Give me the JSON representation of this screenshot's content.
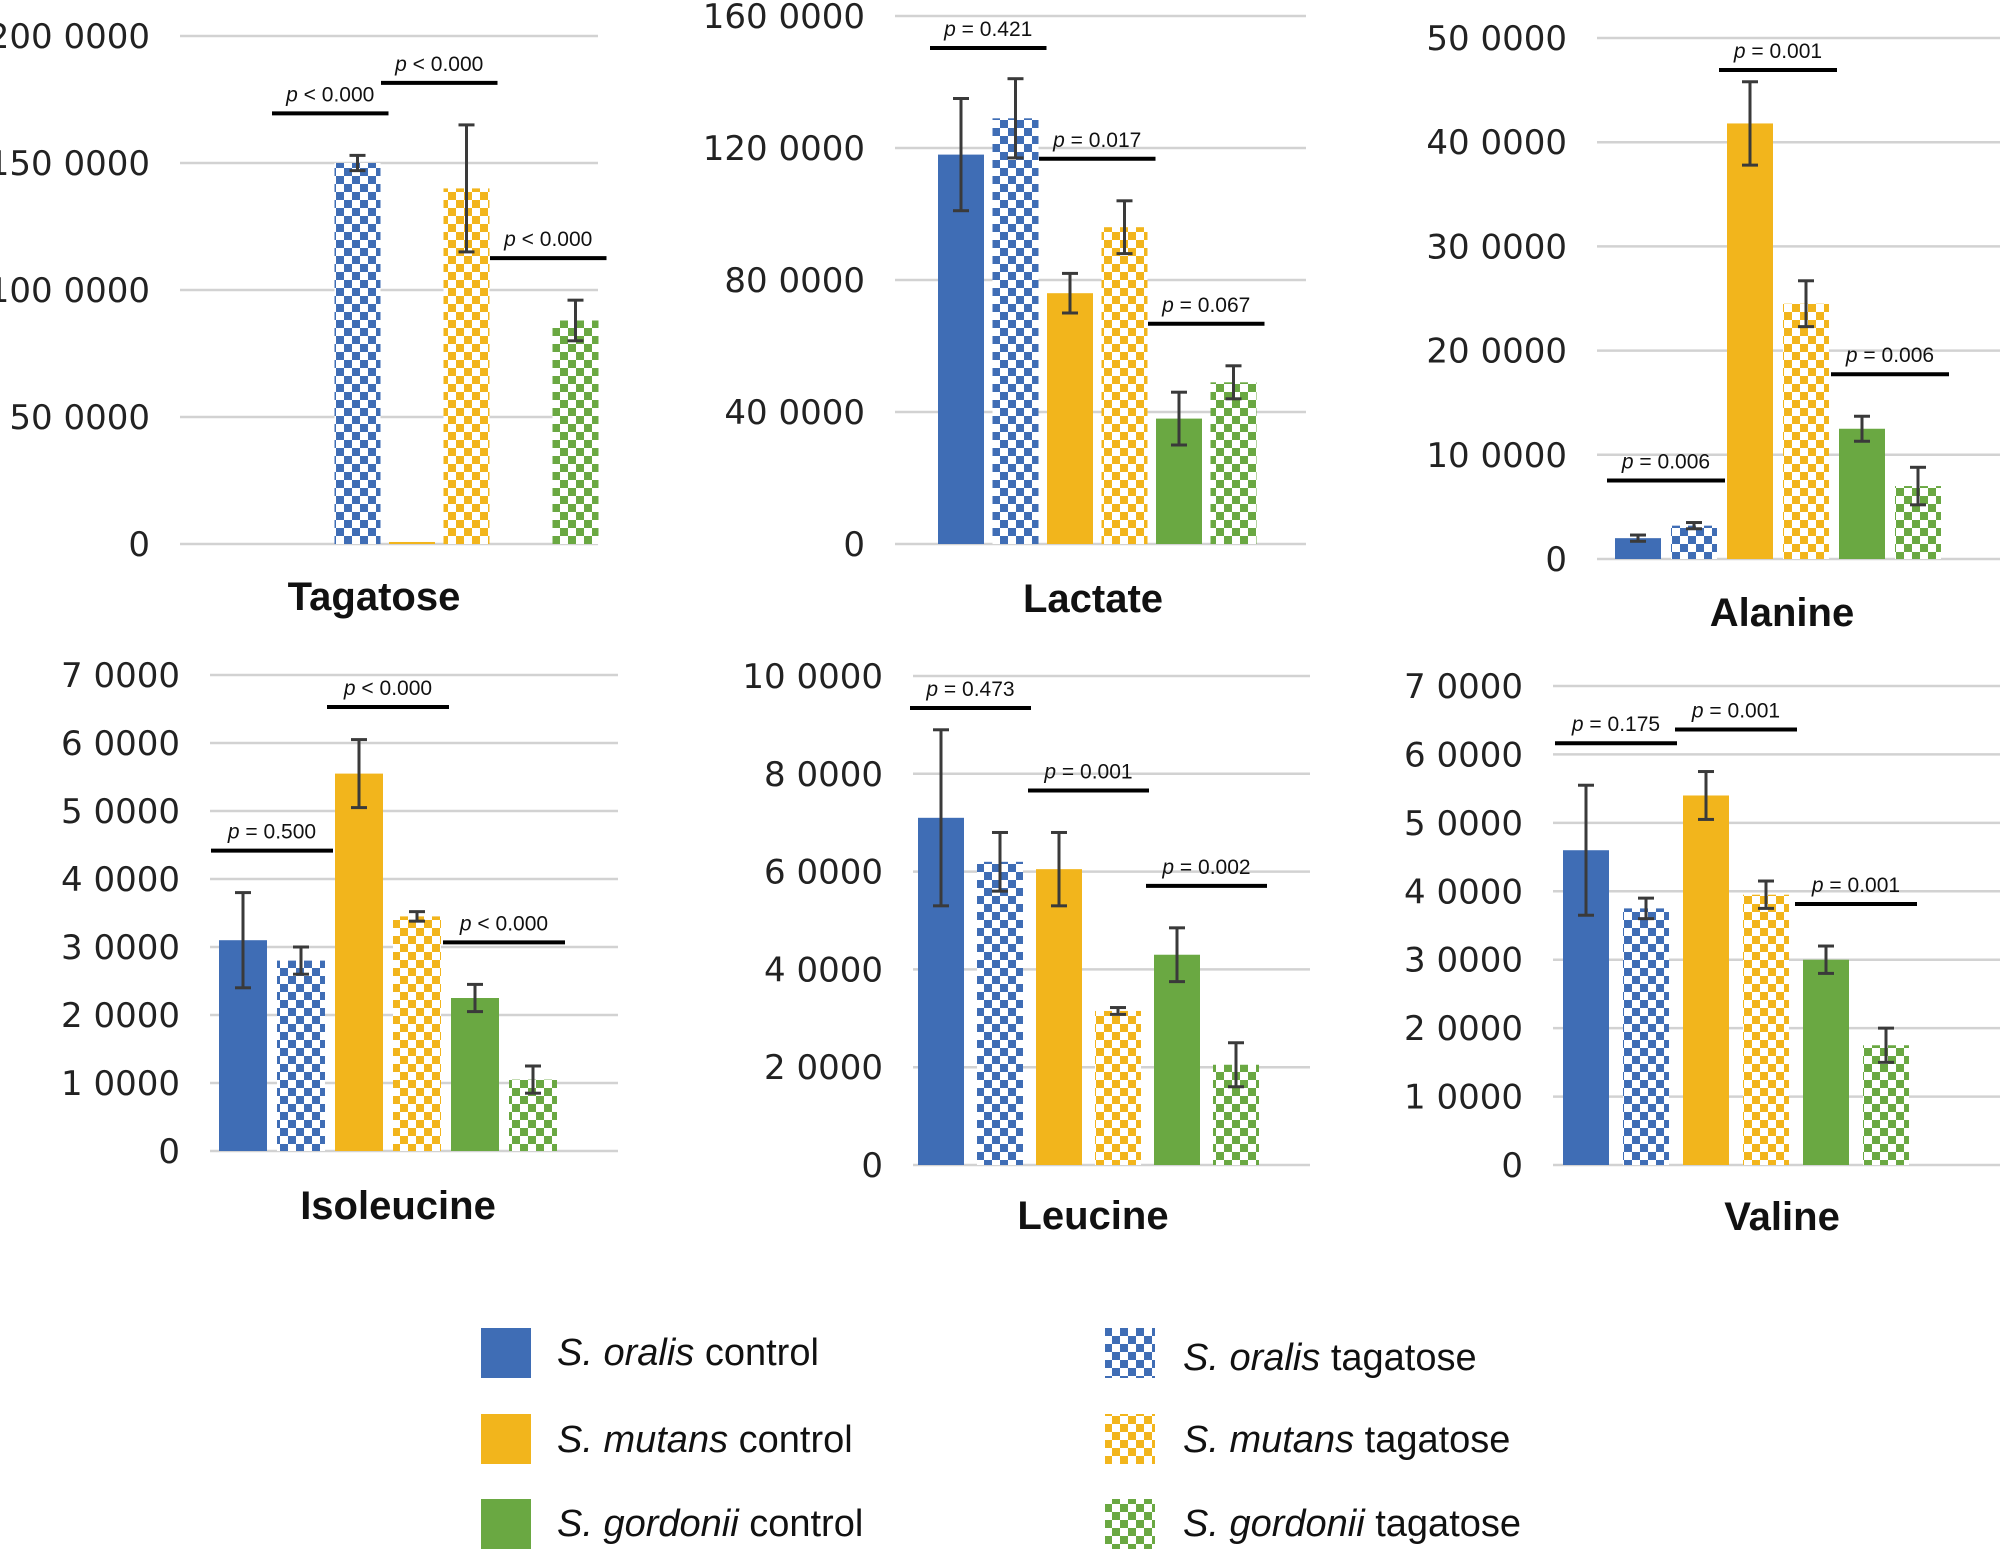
{
  "colors": {
    "oralis": "#3f6db5",
    "mutans": "#f2b51c",
    "gordonii": "#6aa842",
    "grid": "#d2d2d2",
    "error": "#3a3a3a"
  },
  "legend": [
    {
      "species": "S. oralis",
      "condition": "control",
      "color": "#3f6db5",
      "pattern": "solid"
    },
    {
      "species": "S. oralis",
      "condition": "tagatose",
      "color": "#3f6db5",
      "pattern": "checker"
    },
    {
      "species": "S. mutans",
      "condition": "control",
      "color": "#f2b51c",
      "pattern": "solid"
    },
    {
      "species": "S. mutans",
      "condition": "tagatose",
      "color": "#f2b51c",
      "pattern": "checker"
    },
    {
      "species": "S. gordonii",
      "condition": "control",
      "color": "#6aa842",
      "pattern": "solid"
    },
    {
      "species": "S. gordonii",
      "condition": "tagatose",
      "color": "#6aa842",
      "pattern": "checker"
    }
  ],
  "chart_data": [
    {
      "type": "bar",
      "title": "Tagatose",
      "ylim": [
        0,
        2000000
      ],
      "ytick_values": [
        0,
        500000,
        1000000,
        1500000,
        2000000
      ],
      "ytick_labels": [
        "0",
        "50 0000",
        "100 0000",
        "150 0000",
        "200 0000"
      ],
      "series": [
        {
          "name": "S. oralis control",
          "value": 0,
          "error": 0
        },
        {
          "name": "S. oralis tagatose",
          "value": 1500000,
          "error": 30000
        },
        {
          "name": "S. mutans control",
          "value": 8000,
          "error": 0
        },
        {
          "name": "S. mutans tagatose",
          "value": 1400000,
          "error": 250000
        },
        {
          "name": "S. gordonii control",
          "value": 0,
          "error": 0
        },
        {
          "name": "S. gordonii tagatose",
          "value": 880000,
          "error": 80000
        }
      ],
      "pvalues": [
        {
          "sign": "<",
          "value": "0.000",
          "pair": 0
        },
        {
          "sign": "<",
          "value": "0.000",
          "pair": 1
        },
        {
          "sign": "<",
          "value": "0.000",
          "pair": 2
        }
      ]
    },
    {
      "type": "bar",
      "title": "Lactate",
      "ylim": [
        0,
        1600000
      ],
      "ytick_values": [
        0,
        400000,
        800000,
        1200000,
        1600000
      ],
      "ytick_labels": [
        "0",
        "40 0000",
        "80 0000",
        "120 0000",
        "160 0000"
      ],
      "series": [
        {
          "name": "S. oralis control",
          "value": 1180000,
          "error": 170000
        },
        {
          "name": "S. oralis tagatose",
          "value": 1290000,
          "error": 120000
        },
        {
          "name": "S. mutans control",
          "value": 760000,
          "error": 60000
        },
        {
          "name": "S. mutans tagatose",
          "value": 960000,
          "error": 80000
        },
        {
          "name": "S. gordonii control",
          "value": 380000,
          "error": 80000
        },
        {
          "name": "S. gordonii tagatose",
          "value": 490000,
          "error": 50000
        }
      ],
      "pvalues": [
        {
          "sign": "=",
          "value": "0.421",
          "pair": 0
        },
        {
          "sign": "=",
          "value": "0.017",
          "pair": 1
        },
        {
          "sign": "=",
          "value": "0.067",
          "pair": 2
        }
      ]
    },
    {
      "type": "bar",
      "title": "Alanine",
      "ylim": [
        0,
        500000
      ],
      "ytick_values": [
        0,
        100000,
        200000,
        300000,
        400000,
        500000
      ],
      "ytick_labels": [
        "0",
        "10 0000",
        "20 0000",
        "30 0000",
        "40 0000",
        "50 0000"
      ],
      "series": [
        {
          "name": "S. oralis control",
          "value": 20000,
          "error": 3000
        },
        {
          "name": "S. oralis tagatose",
          "value": 32000,
          "error": 3000
        },
        {
          "name": "S. mutans control",
          "value": 418000,
          "error": 40000
        },
        {
          "name": "S. mutans tagatose",
          "value": 245000,
          "error": 22000
        },
        {
          "name": "S. gordonii control",
          "value": 125000,
          "error": 12000
        },
        {
          "name": "S. gordonii tagatose",
          "value": 70000,
          "error": 18000
        }
      ],
      "pvalues": [
        {
          "sign": "=",
          "value": "0.006",
          "pair": 0
        },
        {
          "sign": "=",
          "value": "0.001",
          "pair": 1
        },
        {
          "sign": "=",
          "value": "0.006",
          "pair": 2
        }
      ]
    },
    {
      "type": "bar",
      "title": "Isoleucine",
      "ylim": [
        0,
        70000
      ],
      "ytick_values": [
        0,
        10000,
        20000,
        30000,
        40000,
        50000,
        60000,
        70000
      ],
      "ytick_labels": [
        "0",
        "1 0000",
        "2 0000",
        "3 0000",
        "4 0000",
        "5 0000",
        "6 0000",
        "7 0000"
      ],
      "series": [
        {
          "name": "S. oralis control",
          "value": 31000,
          "error": 7000
        },
        {
          "name": "S. oralis tagatose",
          "value": 28000,
          "error": 2000
        },
        {
          "name": "S. mutans control",
          "value": 55500,
          "error": 5000
        },
        {
          "name": "S. mutans tagatose",
          "value": 34500,
          "error": 700
        },
        {
          "name": "S. gordonii control",
          "value": 22500,
          "error": 2000
        },
        {
          "name": "S. gordonii tagatose",
          "value": 10500,
          "error": 2000
        }
      ],
      "pvalues": [
        {
          "sign": "=",
          "value": "0.500",
          "pair": 0
        },
        {
          "sign": "<",
          "value": "0.000",
          "pair": 1
        },
        {
          "sign": "<",
          "value": "0.000",
          "pair": 2
        }
      ]
    },
    {
      "type": "bar",
      "title": "Leucine",
      "ylim": [
        0,
        100000
      ],
      "ytick_values": [
        0,
        20000,
        40000,
        60000,
        80000,
        100000
      ],
      "ytick_labels": [
        "0",
        "2 0000",
        "4 0000",
        "6 0000",
        "8 0000",
        "10 0000"
      ],
      "series": [
        {
          "name": "S. oralis control",
          "value": 71000,
          "error": 18000
        },
        {
          "name": "S. oralis tagatose",
          "value": 62000,
          "error": 6000
        },
        {
          "name": "S. mutans control",
          "value": 60500,
          "error": 7500
        },
        {
          "name": "S. mutans tagatose",
          "value": 31500,
          "error": 700
        },
        {
          "name": "S. gordonii control",
          "value": 43000,
          "error": 5500
        },
        {
          "name": "S. gordonii tagatose",
          "value": 20500,
          "error": 4500
        }
      ],
      "pvalues": [
        {
          "sign": "=",
          "value": "0.473",
          "pair": 0
        },
        {
          "sign": "=",
          "value": "0.001",
          "pair": 1
        },
        {
          "sign": "=",
          "value": "0.002",
          "pair": 2
        }
      ]
    },
    {
      "type": "bar",
      "title": "Valine",
      "ylim": [
        0,
        70000
      ],
      "ytick_values": [
        0,
        10000,
        20000,
        30000,
        40000,
        50000,
        60000,
        70000
      ],
      "ytick_labels": [
        "0",
        "1 0000",
        "2 0000",
        "3 0000",
        "4 0000",
        "5 0000",
        "6 0000",
        "7 0000"
      ],
      "series": [
        {
          "name": "S. oralis control",
          "value": 46000,
          "error": 9500
        },
        {
          "name": "S. oralis tagatose",
          "value": 37500,
          "error": 1500
        },
        {
          "name": "S. mutans control",
          "value": 54000,
          "error": 3500
        },
        {
          "name": "S. mutans tagatose",
          "value": 39500,
          "error": 2000
        },
        {
          "name": "S. gordonii control",
          "value": 30000,
          "error": 2000
        },
        {
          "name": "S. gordonii tagatose",
          "value": 17500,
          "error": 2500
        }
      ],
      "pvalues": [
        {
          "sign": "=",
          "value": "0.175",
          "pair": 0
        },
        {
          "sign": "=",
          "value": "0.001",
          "pair": 1
        },
        {
          "sign": "=",
          "value": "0.001",
          "pair": 2
        }
      ]
    }
  ]
}
